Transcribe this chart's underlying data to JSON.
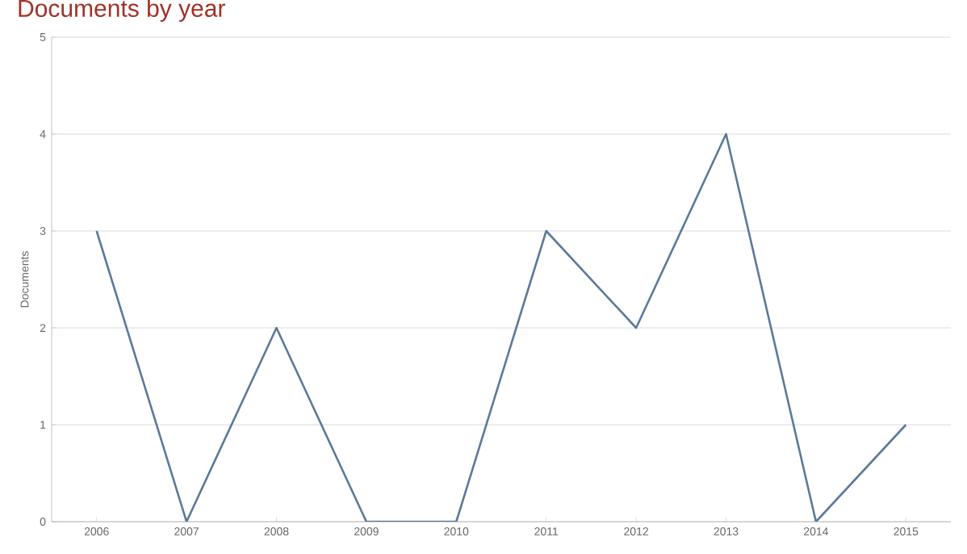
{
  "chart_data": {
    "type": "line",
    "title": "Documents by year",
    "ylabel": "Documents",
    "categories": [
      "2006",
      "2007",
      "2008",
      "2009",
      "2010",
      "2011",
      "2012",
      "2013",
      "2014",
      "2015"
    ],
    "values": [
      3,
      0,
      2,
      0,
      0,
      3,
      2,
      4,
      0,
      1
    ],
    "color": "#5b7a99",
    "ylim": [
      0,
      5
    ],
    "yticks": [
      0,
      1,
      2,
      3,
      4,
      5
    ],
    "grid": "y",
    "marker": "none",
    "line_style": "solid"
  }
}
